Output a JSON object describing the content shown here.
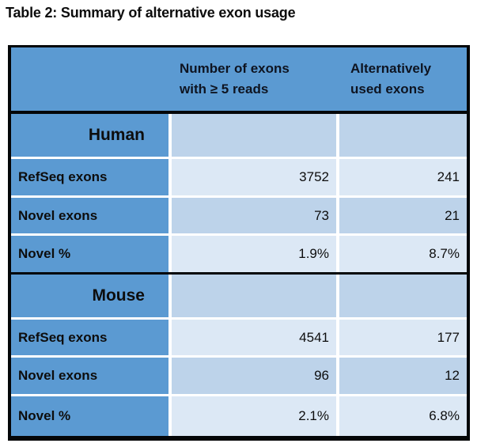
{
  "title": "Table 2: Summary of alternative exon usage",
  "colors": {
    "accent_blue": "#5b9ad2",
    "row_light": "#dce8f5",
    "row_medium": "#bdd3ea",
    "gridline_white": "#ffffff",
    "border_black": "#040608"
  },
  "table": {
    "column_headers": [
      {
        "line1": "Number of exons",
        "line2": "with ≥ 5 reads"
      },
      {
        "line1": "Alternatively",
        "line2": "used exons"
      }
    ],
    "sections": [
      {
        "name": "Human",
        "rows": [
          {
            "label": "RefSeq exons",
            "exons_5reads": "3752",
            "alt_used": "241"
          },
          {
            "label": "Novel exons",
            "exons_5reads": "73",
            "alt_used": "21"
          },
          {
            "label": "Novel %",
            "exons_5reads": "1.9%",
            "alt_used": "8.7%"
          }
        ]
      },
      {
        "name": "Mouse",
        "rows": [
          {
            "label": "RefSeq exons",
            "exons_5reads": "4541",
            "alt_used": "177"
          },
          {
            "label": "Novel exons",
            "exons_5reads": "96",
            "alt_used": "12"
          },
          {
            "label": "Novel %",
            "exons_5reads": "2.1%",
            "alt_used": "6.8%"
          }
        ]
      }
    ]
  }
}
